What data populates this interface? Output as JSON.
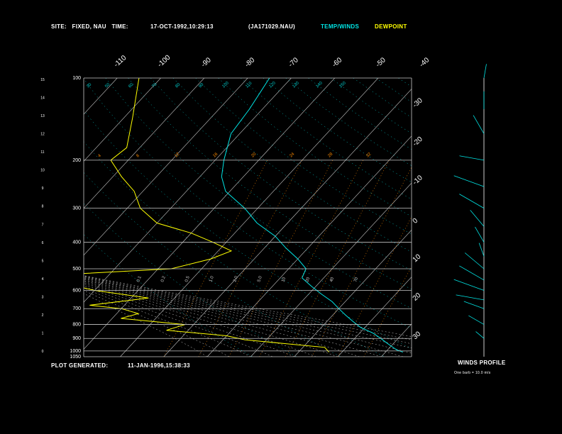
{
  "header": {
    "site_label": "SITE:",
    "site_value": "FIXED, NAU",
    "time_label": "TIME:",
    "time_value": "17-OCT-1992,10:29:13",
    "file_value": "(JA171029.NAU)",
    "legend_temp": "TEMP/WINDS",
    "legend_dew": "DEWPOINT"
  },
  "footer": {
    "generated_label": "PLOT GENERATED:",
    "generated_value": "11-JAN-1996,15:38:33",
    "winds_title": "WINDS PROFILE",
    "winds_note": "One barb = 10.0 m/s"
  },
  "colors": {
    "temp": "#00e5e5",
    "dewpoint": "#ffff00",
    "grid": "#c8c8c8",
    "mixing": "#ff8c00",
    "dry_adiabat": "#00cccc",
    "moist_adiabat": "#c8c8c8",
    "background": "#000000"
  },
  "chart_data": {
    "type": "line",
    "diagram": "skew-T log-P",
    "pressure_levels": [
      100,
      200,
      300,
      400,
      500,
      600,
      700,
      800,
      900,
      1000,
      1050
    ],
    "pressure_labels": [
      "100",
      "200",
      "300",
      "400",
      "500",
      "600",
      "700",
      "800",
      "900",
      "1000",
      "1050"
    ],
    "height_ticks": [
      "15",
      "14",
      "13",
      "12",
      "11",
      "10",
      "9",
      "8",
      "7",
      "6",
      "5",
      "4",
      "3",
      "2",
      "1",
      "0"
    ],
    "isotherm_labels_top": [
      "-110",
      "-100",
      "-90",
      "-80",
      "-70",
      "-60",
      "-50",
      "-40"
    ],
    "isotherm_labels_right": [
      "-30",
      "-20",
      "-10",
      "0",
      "10",
      "20",
      "30"
    ],
    "theta_labels": [
      "30",
      "50",
      "60",
      "70",
      "80",
      "90",
      "100",
      "110",
      "120",
      "130",
      "140",
      "150"
    ],
    "mixing_labels": [
      "4",
      "8",
      "12",
      "16",
      "20",
      "24",
      "28",
      "32"
    ],
    "moist_labels": [
      "0.1",
      "0.2",
      "0.5",
      "1.0",
      "2.0",
      "5.0",
      "10",
      "20",
      "40",
      "70"
    ],
    "temperature": {
      "name": "TEMP/WINDS",
      "pressure": [
        100,
        130,
        160,
        200,
        230,
        260,
        300,
        340,
        380,
        420,
        460,
        500,
        540,
        580,
        620,
        660,
        700,
        740,
        780,
        820,
        860,
        900,
        930,
        960,
        990,
        1010
      ],
      "value": [
        -75,
        -73,
        -72,
        -68,
        -65,
        -61,
        -53,
        -47,
        -40,
        -35,
        -30,
        -26,
        -25,
        -21,
        -17,
        -13,
        -10,
        -7,
        -4,
        -1,
        3,
        6,
        8,
        10,
        12,
        14
      ]
    },
    "dewpoint": {
      "name": "DEWPOINT",
      "pressure": [
        100,
        140,
        180,
        200,
        230,
        260,
        300,
        340,
        370,
        400,
        430,
        460,
        500,
        530,
        560,
        600,
        640,
        680,
        700,
        730,
        760,
        800,
        840,
        880,
        910,
        940,
        970,
        990,
        1010
      ],
      "value": [
        -105,
        -98,
        -93,
        -94,
        -88,
        -82,
        -77,
        -70,
        -60,
        -53,
        -47,
        -50,
        -57,
        -85,
        -80,
        -70,
        -56,
        -68,
        -60,
        -55,
        -58,
        -42,
        -45,
        -30,
        -25,
        -15,
        -5,
        -4,
        -3
      ]
    },
    "winds_profile": {
      "title": "WINDS PROFILE",
      "note": "One barb = 10.0 m/s",
      "pressure": [
        100,
        130,
        160,
        200,
        250,
        300,
        350,
        400,
        450,
        500,
        550,
        600,
        650,
        700,
        800,
        900
      ],
      "speed": [
        20,
        25,
        30,
        35,
        45,
        40,
        30,
        25,
        20,
        35,
        40,
        45,
        40,
        30,
        25,
        15
      ],
      "direction": [
        170,
        180,
        210,
        260,
        250,
        240,
        220,
        210,
        200,
        230,
        240,
        250,
        260,
        250,
        240,
        230
      ]
    }
  }
}
